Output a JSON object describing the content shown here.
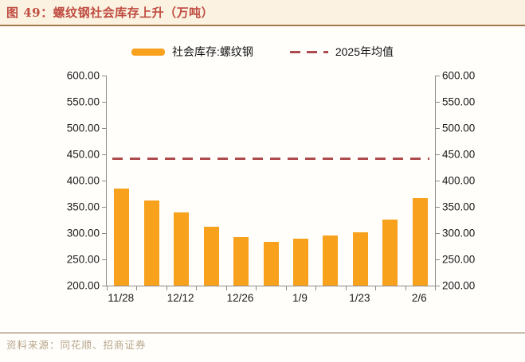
{
  "figure": {
    "title": "图 49：螺纹钢社会库存上升（万吨）",
    "source": "资料来源：同花顺、招商证券"
  },
  "colors": {
    "bar": "#F7A11C",
    "mean_line": "#AE4B4E",
    "title": "#BF4B40",
    "header_rule": "#A1794A",
    "header_band": "#FBF2E2",
    "axis": "#8C8C8C",
    "source_text": "#B7A58B"
  },
  "chart_data": {
    "type": "bar",
    "series": [
      {
        "name": "社会库存:螺纹钢",
        "color": "#F7A11C",
        "values": [
          385,
          362,
          339,
          312,
          293,
          283,
          290,
          295,
          302,
          326,
          366
        ]
      }
    ],
    "reference_line": {
      "name": "2025年均值",
      "value": 442,
      "style": "dashed",
      "color": "#AE4B4E"
    },
    "x_tick_labels": [
      "11/28",
      "12/12",
      "12/26",
      "1/9",
      "1/23",
      "2/6"
    ],
    "x_label_slot_indices": [
      0,
      2,
      4,
      6,
      8,
      10
    ],
    "num_bars": 11,
    "ylim": [
      200,
      600
    ],
    "y_ticks": [
      200,
      250,
      300,
      350,
      400,
      450,
      500,
      550,
      600
    ],
    "y_tick_decimals": 2,
    "dual_y_axis": true,
    "grid": false,
    "legend_position": "top"
  }
}
